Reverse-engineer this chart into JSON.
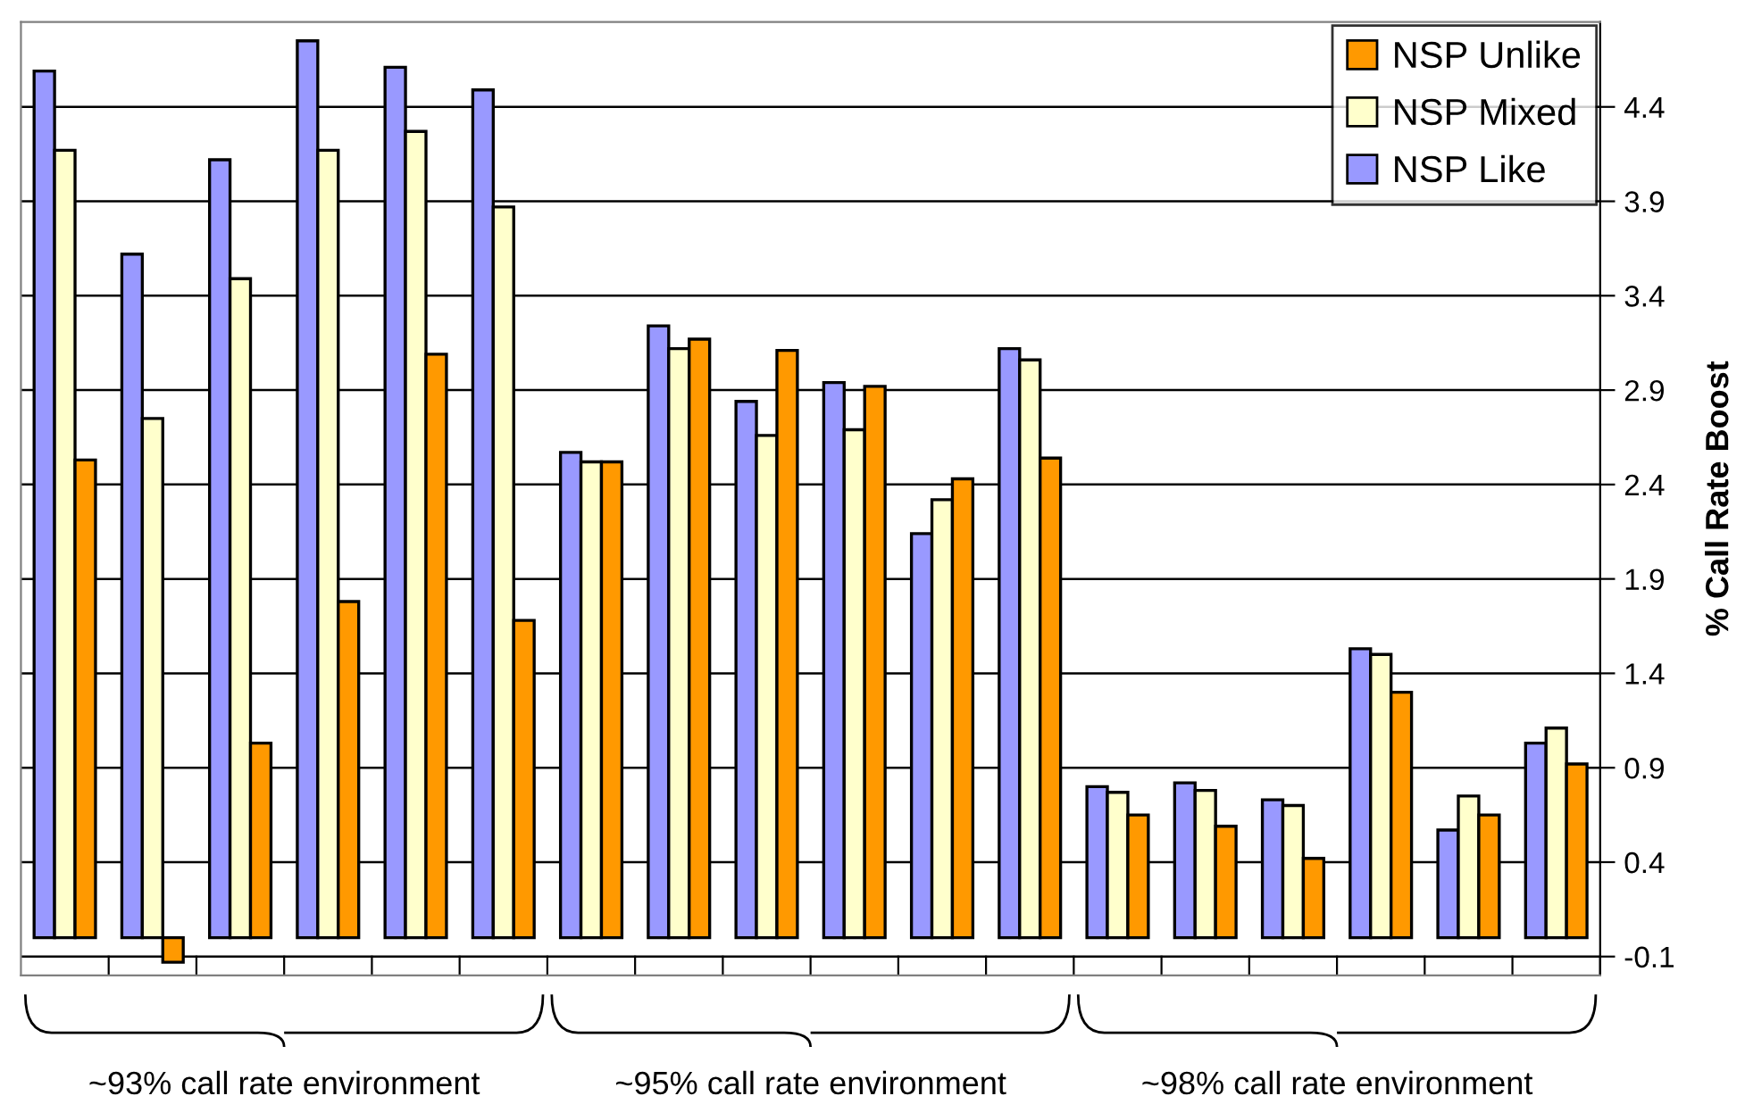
{
  "chart_data": {
    "type": "bar",
    "ylabel": "% Call Rate Boost",
    "categories": [
      null,
      null,
      null,
      null,
      null,
      null,
      null,
      null,
      null,
      null,
      null,
      null,
      null,
      null,
      null,
      null,
      null,
      null
    ],
    "series": [
      {
        "name": "NSP Like",
        "color": "#9999ff",
        "values": [
          4.59,
          3.62,
          4.12,
          4.75,
          4.61,
          4.49,
          2.57,
          3.24,
          2.84,
          2.94,
          2.14,
          3.12,
          0.8,
          0.82,
          0.73,
          1.53,
          0.57,
          1.03
        ]
      },
      {
        "name": "NSP Mixed",
        "color": "#ffffcc",
        "values": [
          4.17,
          2.75,
          3.49,
          4.17,
          4.27,
          3.87,
          2.52,
          3.12,
          2.66,
          2.69,
          2.32,
          3.06,
          0.77,
          0.78,
          0.7,
          1.5,
          0.75,
          1.11
        ]
      },
      {
        "name": "NSP Unlike",
        "color": "#ff9900",
        "values": [
          2.53,
          -0.13,
          1.03,
          1.78,
          3.09,
          1.68,
          2.52,
          3.17,
          3.11,
          2.92,
          2.43,
          2.54,
          0.65,
          0.59,
          0.42,
          1.3,
          0.65,
          0.92
        ]
      }
    ],
    "ylim": [
      -0.2,
      4.85
    ],
    "yticks": [
      -0.1,
      0.4,
      0.9,
      1.4,
      1.9,
      2.4,
      2.9,
      3.4,
      3.9,
      4.4
    ],
    "grid": "y",
    "legend": "top right",
    "annotations": [
      "~93% call rate environment",
      "~95% call rate environment",
      "~98% call rate environment"
    ]
  }
}
